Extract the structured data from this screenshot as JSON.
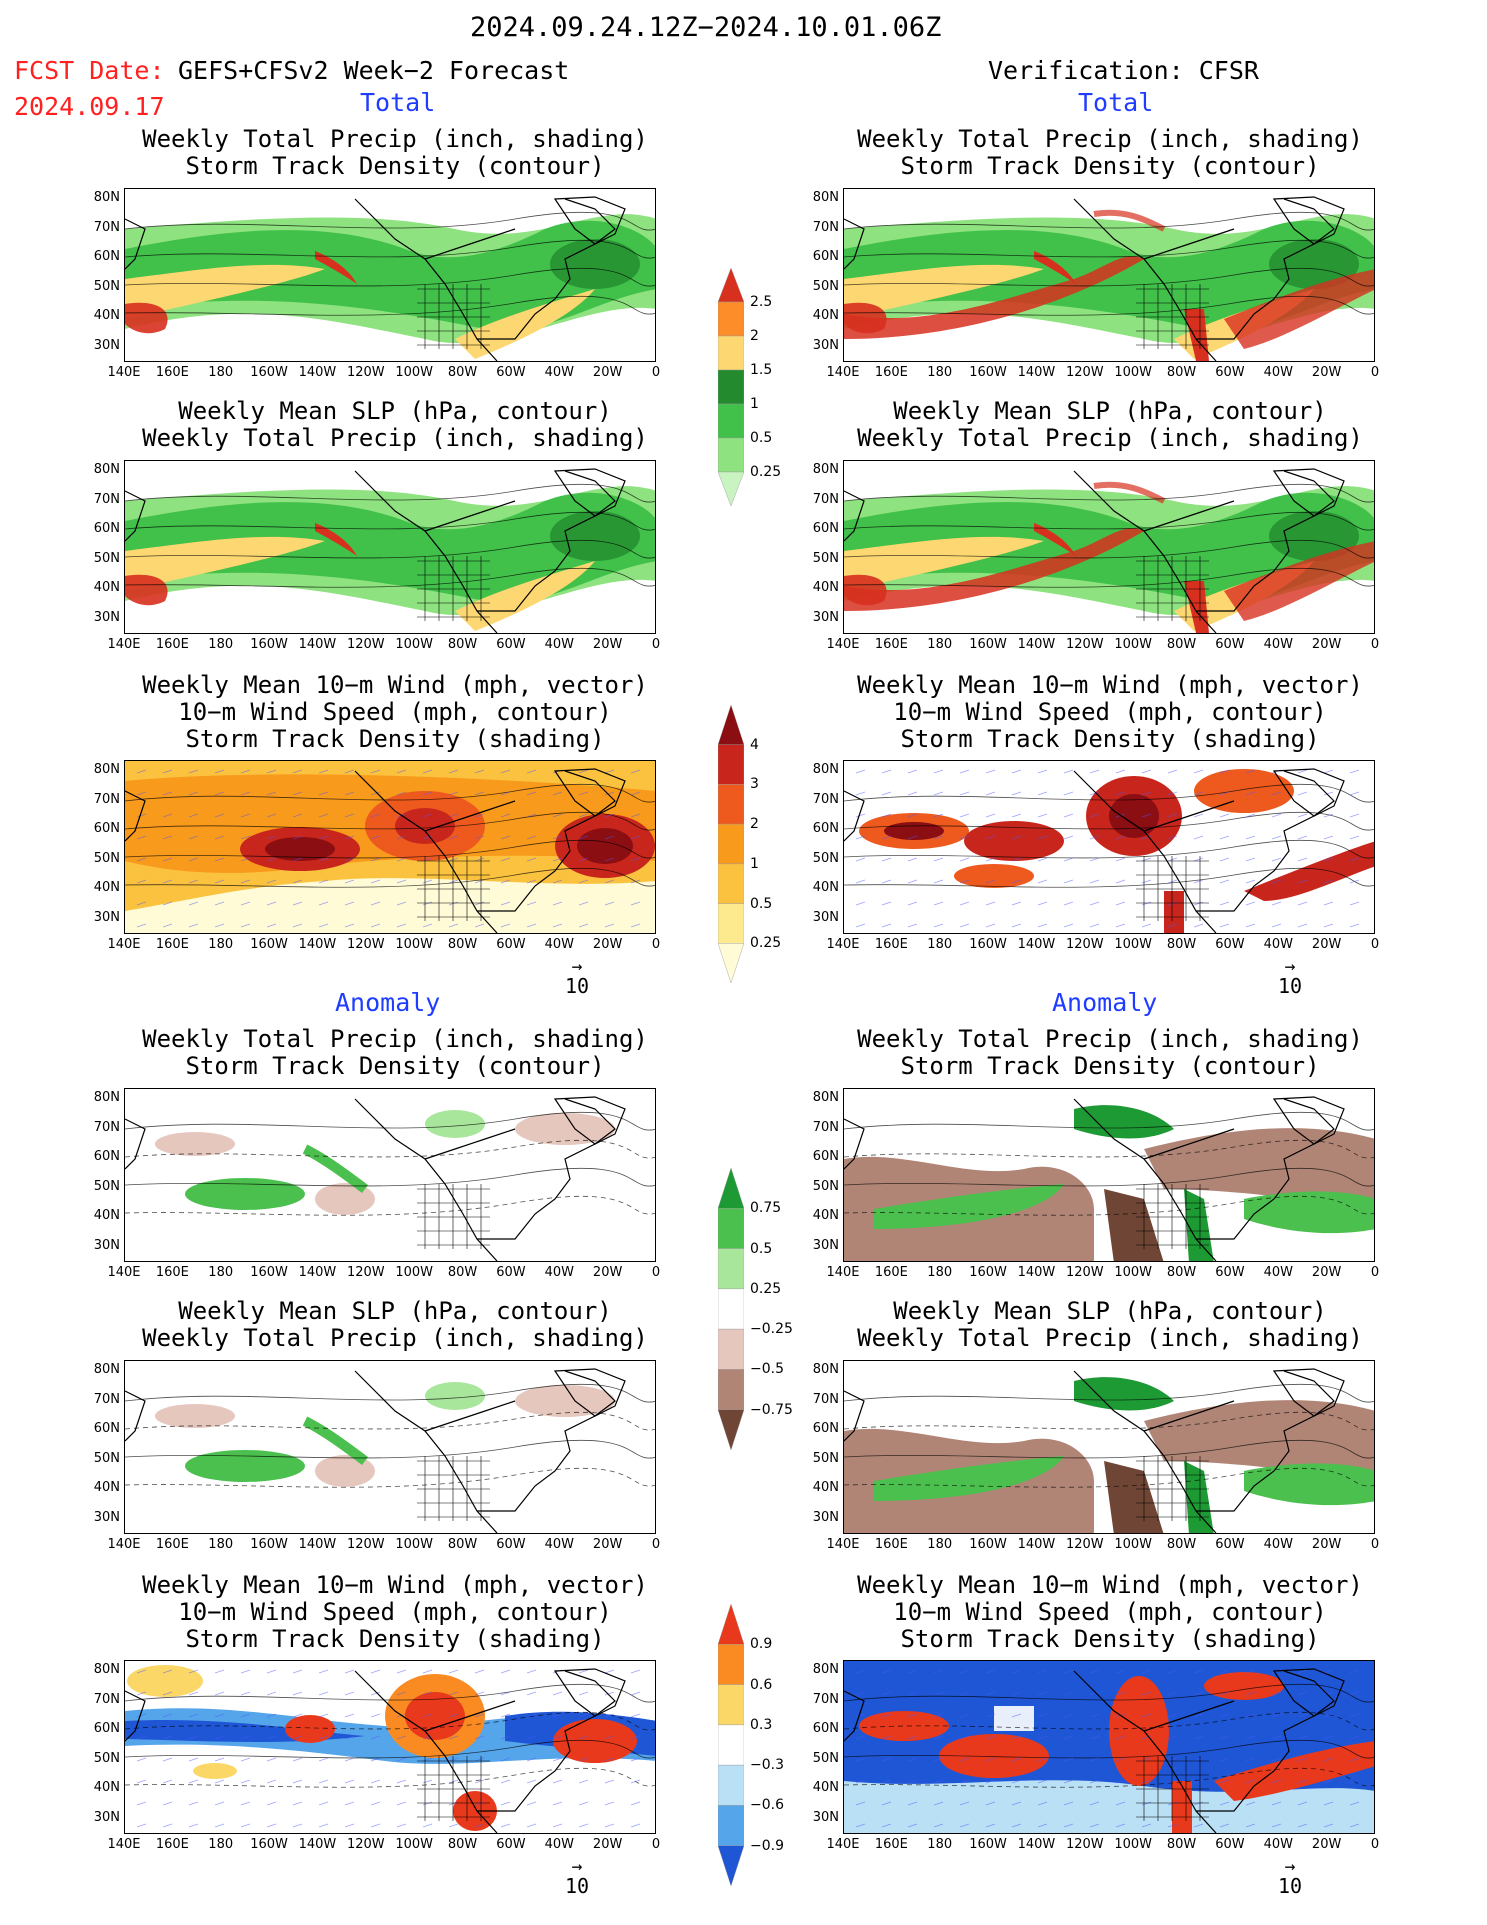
{
  "header": {
    "date_range": "2024.09.24.12Z−2024.10.01.06Z",
    "fcst_label": "FCST Date:",
    "fcst_model": "GEFS+CFSv2 Week−2 Forecast",
    "fcst_date": "2024.09.17",
    "verification": "Verification: CFSR"
  },
  "sections": {
    "total": "Total",
    "anomaly": "Anomaly"
  },
  "titles": {
    "precip_storm": [
      "Weekly Total Precip (inch, shading)",
      "Storm Track Density (contour)"
    ],
    "slp_precip": [
      "Weekly Mean SLP (hPa, contour)",
      "Weekly Total Precip (inch, shading)"
    ],
    "wind_storm": [
      "Weekly Mean 10−m Wind (mph, vector)",
      "10−m Wind Speed (mph, contour)",
      "Storm Track Density (shading)"
    ]
  },
  "axes": {
    "lat_ticks": [
      "80N",
      "70N",
      "60N",
      "50N",
      "40N",
      "30N"
    ],
    "lon_ticks": [
      "140E",
      "160E",
      "180",
      "160W",
      "140W",
      "120W",
      "100W",
      "80W",
      "60W",
      "40W",
      "20W",
      "0"
    ]
  },
  "vector_ref": "10",
  "colorbars": {
    "precip_total": {
      "labels": [
        "2.5",
        "2",
        "1.5",
        "1",
        "0.5",
        "0.25"
      ],
      "colors": [
        "#d7301f",
        "#fc8d29",
        "#fdd771",
        "#238b2e",
        "#41c04a",
        "#8ee27f",
        "#c9f3c0"
      ]
    },
    "storm_total": {
      "labels": [
        "4",
        "3",
        "2",
        "1",
        "0.5",
        "0.25"
      ],
      "colors": [
        "#8b0e12",
        "#c8261c",
        "#ee5a1e",
        "#f89a1b",
        "#fbc240",
        "#fde98e",
        "#fffbd6"
      ]
    },
    "precip_anom": {
      "labels": [
        "0.75",
        "0.5",
        "0.25",
        "−0.25",
        "−0.5",
        "−0.75"
      ],
      "colors": [
        "#1e9a34",
        "#4bc04e",
        "#a8e69b",
        "#ffffff",
        "#e6c7bd",
        "#b08576",
        "#6f4535"
      ]
    },
    "storm_anom": {
      "labels": [
        "0.9",
        "0.6",
        "0.3",
        "−0.3",
        "−0.6",
        "−0.9"
      ],
      "colors": [
        "#e8391c",
        "#fa8b22",
        "#fbd768",
        "#ffffff",
        "#b9e0f4",
        "#55a5eb",
        "#1f56d6"
      ]
    }
  }
}
